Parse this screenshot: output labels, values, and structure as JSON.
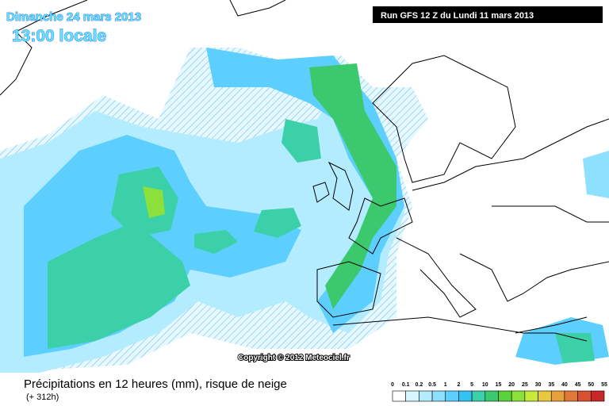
{
  "header": {
    "date": "Dimanche 24 mars 2013",
    "time": "13:00 locale",
    "run": "Run GFS 12 Z du Lundi 11 mars 2013"
  },
  "copyright": "Copyright © 2012 Meteociel.fr",
  "footer": {
    "title": "Précipitations en 12 heures (mm), risque de neige",
    "lead": "(+ 312h)"
  },
  "legend": {
    "ticks": [
      0,
      0.1,
      0.2,
      0.5,
      1,
      2,
      5,
      10,
      15,
      20,
      25,
      30,
      35,
      40,
      45,
      50,
      55
    ],
    "colors": [
      "#ffffff",
      "#d8f6ff",
      "#b4ecff",
      "#8ee0ff",
      "#5ccfff",
      "#34c3f0",
      "#3cd0a8",
      "#3cc86c",
      "#5ad23c",
      "#8ce03c",
      "#c8e83c",
      "#e8c83c",
      "#e8a03c",
      "#e07838",
      "#d85030",
      "#c82828"
    ]
  }
}
